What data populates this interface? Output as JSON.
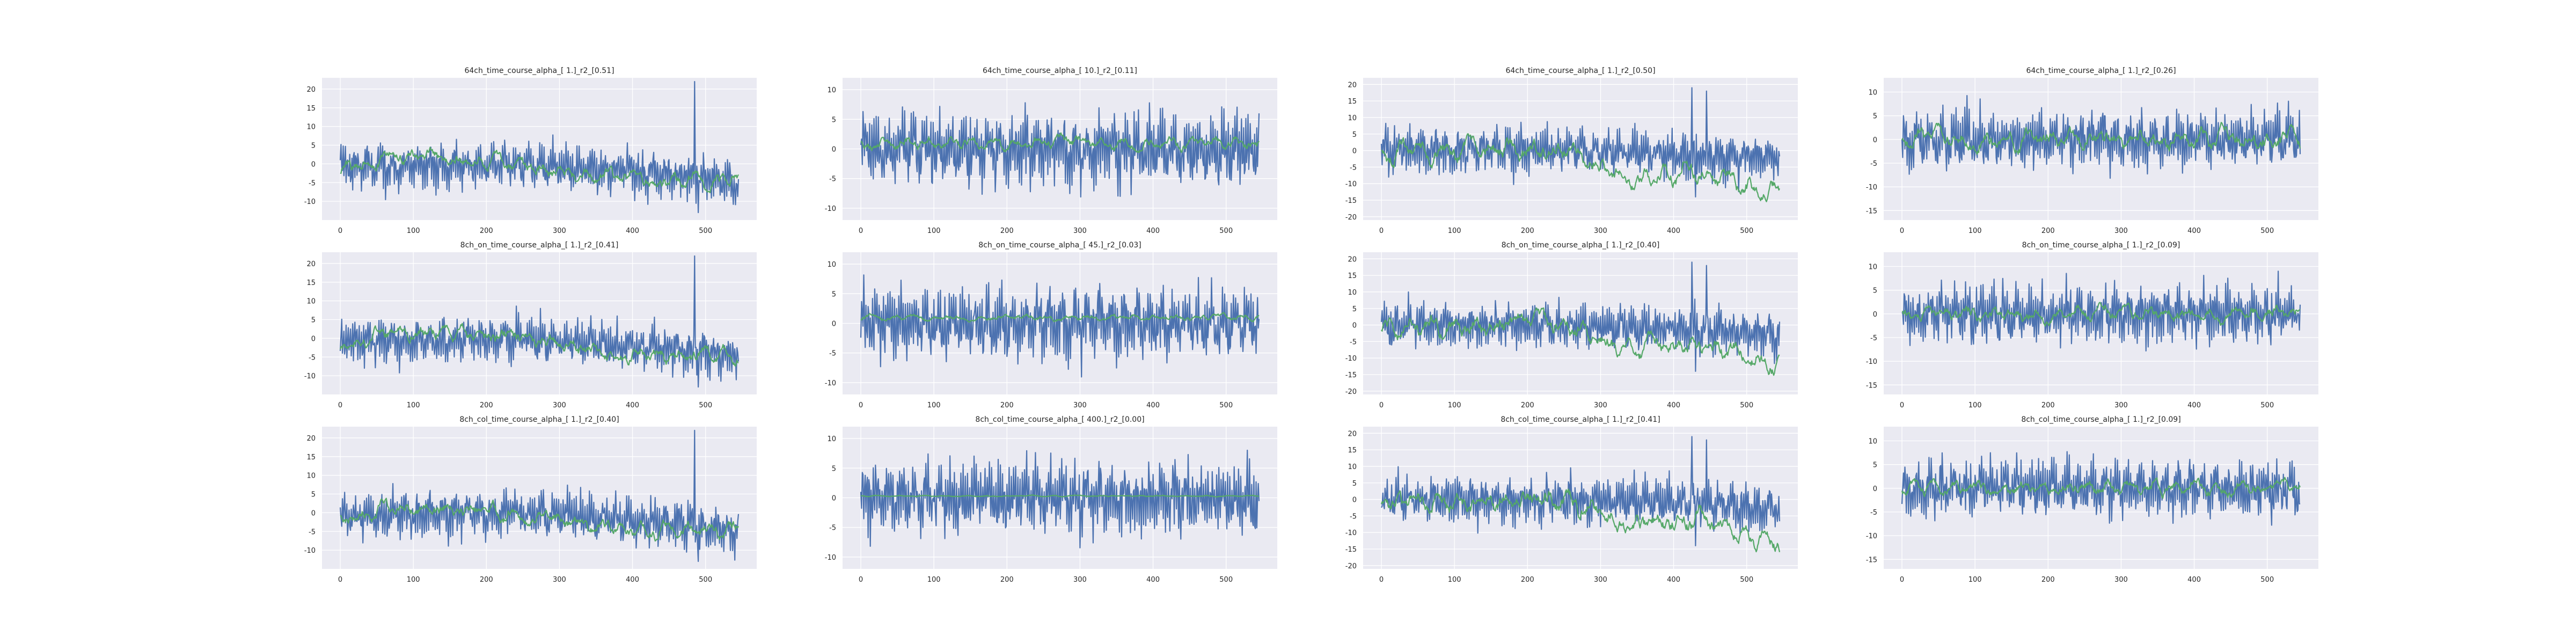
{
  "figure": {
    "background": "#ffffff",
    "plot_background": "#eaeaf2",
    "grid_color": "#ffffff",
    "colors": {
      "blue": "#4c72b0",
      "green": "#55a868"
    }
  },
  "chart_data": [
    {
      "type": "line",
      "title": "64ch_time_course_alpha_[ 1.]_r2_[0.51]",
      "x_range": [
        0,
        545
      ],
      "xlim": [
        -25,
        570
      ],
      "ylim": [
        -15,
        23
      ],
      "xticks": [
        0,
        100,
        200,
        300,
        400,
        500
      ],
      "yticks": [
        -10,
        -5,
        0,
        5,
        10,
        15,
        20
      ],
      "grid": true,
      "series": [
        {
          "color": "blue",
          "amplitude": 6,
          "style": "oscillating",
          "trend": [
            [
              0,
              -1
            ],
            [
              240,
              0
            ],
            [
              470,
              -3
            ],
            [
              545,
              -5
            ]
          ],
          "bursts": [
            [
              485,
              22
            ],
            [
              490,
              -13
            ]
          ]
        },
        {
          "color": "green",
          "amplitude": 2,
          "style": "smooth",
          "trend": [
            [
              0,
              -2
            ],
            [
              60,
              2
            ],
            [
              240,
              0
            ],
            [
              420,
              -5
            ],
            [
              545,
              -4
            ]
          ]
        }
      ]
    },
    {
      "type": "line",
      "title": "64ch_time_course_alpha_[ 10.]_r2_[0.11]",
      "x_range": [
        0,
        545
      ],
      "xlim": [
        -25,
        570
      ],
      "ylim": [
        -12,
        12
      ],
      "xticks": [
        0,
        100,
        200,
        300,
        400,
        500
      ],
      "yticks": [
        -10,
        -5,
        0,
        5,
        10
      ],
      "grid": true,
      "series": [
        {
          "color": "blue",
          "amplitude": 6,
          "style": "oscillating",
          "trend": [
            [
              0,
              0
            ],
            [
              545,
              0
            ]
          ]
        },
        {
          "color": "green",
          "amplitude": 1,
          "style": "smooth",
          "trend": [
            [
              0,
              1
            ],
            [
              545,
              1
            ]
          ]
        }
      ]
    },
    {
      "type": "line",
      "title": "64ch_time_course_alpha_[ 1.]_r2_[0.50]",
      "x_range": [
        0,
        545
      ],
      "xlim": [
        -25,
        570
      ],
      "ylim": [
        -21,
        22
      ],
      "xticks": [
        0,
        100,
        200,
        300,
        400,
        500
      ],
      "yticks": [
        -20,
        -15,
        -10,
        -5,
        0,
        5,
        10,
        15,
        20
      ],
      "grid": true,
      "series": [
        {
          "color": "blue",
          "amplitude": 7,
          "style": "oscillating",
          "trend": [
            [
              0,
              0
            ],
            [
              250,
              0
            ],
            [
              400,
              -1
            ],
            [
              545,
              -3
            ]
          ],
          "bursts": [
            [
              425,
              19
            ],
            [
              430,
              -14
            ],
            [
              445,
              18
            ]
          ]
        },
        {
          "color": "green",
          "amplitude": 3,
          "style": "smooth",
          "trend": [
            [
              0,
              -1
            ],
            [
              250,
              0
            ],
            [
              350,
              -8
            ],
            [
              440,
              -6
            ],
            [
              545,
              -14
            ]
          ]
        }
      ]
    },
    {
      "type": "line",
      "title": "64ch_time_course_alpha_[ 1.]_r2_[0.26]",
      "x_range": [
        0,
        545
      ],
      "xlim": [
        -25,
        570
      ],
      "ylim": [
        -17,
        13
      ],
      "xticks": [
        0,
        100,
        200,
        300,
        400,
        500
      ],
      "yticks": [
        -15,
        -10,
        -5,
        0,
        5,
        10
      ],
      "grid": true,
      "series": [
        {
          "color": "blue",
          "amplitude": 6,
          "style": "oscillating",
          "trend": [
            [
              0,
              0
            ],
            [
              545,
              0
            ]
          ]
        },
        {
          "color": "green",
          "amplitude": 2,
          "style": "smooth",
          "trend": [
            [
              0,
              0
            ],
            [
              545,
              0
            ]
          ]
        }
      ]
    },
    {
      "type": "line",
      "title": "8ch_on_time_course_alpha_[ 1.]_r2_[0.41]",
      "x_range": [
        0,
        545
      ],
      "xlim": [
        -25,
        570
      ],
      "ylim": [
        -15,
        23
      ],
      "xticks": [
        0,
        100,
        200,
        300,
        400,
        500
      ],
      "yticks": [
        -10,
        -5,
        0,
        5,
        10,
        15,
        20
      ],
      "grid": true,
      "series": [
        {
          "color": "blue",
          "amplitude": 6,
          "style": "oscillating",
          "trend": [
            [
              0,
              -1
            ],
            [
              240,
              0
            ],
            [
              470,
              -3
            ],
            [
              545,
              -5
            ]
          ],
          "bursts": [
            [
              485,
              22
            ],
            [
              490,
              -13
            ]
          ]
        },
        {
          "color": "green",
          "amplitude": 2,
          "style": "smooth",
          "trend": [
            [
              0,
              -2
            ],
            [
              60,
              2
            ],
            [
              240,
              0
            ],
            [
              420,
              -5
            ],
            [
              545,
              -4
            ]
          ]
        }
      ]
    },
    {
      "type": "line",
      "title": "8ch_on_time_course_alpha_[ 45.]_r2_[0.03]",
      "x_range": [
        0,
        545
      ],
      "xlim": [
        -25,
        570
      ],
      "ylim": [
        -12,
        12
      ],
      "xticks": [
        0,
        100,
        200,
        300,
        400,
        500
      ],
      "yticks": [
        -10,
        -5,
        0,
        5,
        10
      ],
      "grid": true,
      "series": [
        {
          "color": "blue",
          "amplitude": 6,
          "style": "oscillating",
          "trend": [
            [
              0,
              0
            ],
            [
              545,
              0
            ]
          ]
        },
        {
          "color": "green",
          "amplitude": 0.5,
          "style": "smooth",
          "trend": [
            [
              0,
              1
            ],
            [
              545,
              1
            ]
          ]
        }
      ]
    },
    {
      "type": "line",
      "title": "8ch_on_time_course_alpha_[ 1.]_r2_[0.40]",
      "x_range": [
        0,
        545
      ],
      "xlim": [
        -25,
        570
      ],
      "ylim": [
        -21,
        22
      ],
      "xticks": [
        0,
        100,
        200,
        300,
        400,
        500
      ],
      "yticks": [
        -20,
        -15,
        -10,
        -5,
        0,
        5,
        10,
        15,
        20
      ],
      "grid": true,
      "series": [
        {
          "color": "blue",
          "amplitude": 7,
          "style": "oscillating",
          "trend": [
            [
              0,
              0
            ],
            [
              250,
              0
            ],
            [
              400,
              -1
            ],
            [
              545,
              -3
            ]
          ],
          "bursts": [
            [
              425,
              19
            ],
            [
              430,
              -14
            ],
            [
              445,
              18
            ]
          ]
        },
        {
          "color": "green",
          "amplitude": 3,
          "style": "smooth",
          "trend": [
            [
              0,
              -1
            ],
            [
              250,
              0
            ],
            [
              350,
              -8
            ],
            [
              440,
              -6
            ],
            [
              545,
              -12
            ]
          ]
        }
      ]
    },
    {
      "type": "line",
      "title": "8ch_on_time_course_alpha_[ 1.]_r2_[0.09]",
      "x_range": [
        0,
        545
      ],
      "xlim": [
        -25,
        570
      ],
      "ylim": [
        -17,
        13
      ],
      "xticks": [
        0,
        100,
        200,
        300,
        400,
        500
      ],
      "yticks": [
        -15,
        -10,
        -5,
        0,
        5,
        10
      ],
      "grid": true,
      "series": [
        {
          "color": "blue",
          "amplitude": 6,
          "style": "oscillating",
          "trend": [
            [
              0,
              0
            ],
            [
              545,
              0
            ]
          ]
        },
        {
          "color": "green",
          "amplitude": 1.5,
          "style": "smooth",
          "trend": [
            [
              0,
              0
            ],
            [
              545,
              0
            ]
          ]
        }
      ]
    },
    {
      "type": "line",
      "title": "8ch_col_time_course_alpha_[ 1.]_r2_[0.40]",
      "x_range": [
        0,
        545
      ],
      "xlim": [
        -25,
        570
      ],
      "ylim": [
        -15,
        23
      ],
      "xticks": [
        0,
        100,
        200,
        300,
        400,
        500
      ],
      "yticks": [
        -10,
        -5,
        0,
        5,
        10,
        15,
        20
      ],
      "grid": true,
      "series": [
        {
          "color": "blue",
          "amplitude": 6,
          "style": "oscillating",
          "trend": [
            [
              0,
              -1
            ],
            [
              240,
              0
            ],
            [
              470,
              -3
            ],
            [
              545,
              -5
            ]
          ],
          "bursts": [
            [
              485,
              22
            ],
            [
              490,
              -13
            ]
          ]
        },
        {
          "color": "green",
          "amplitude": 2,
          "style": "smooth",
          "trend": [
            [
              0,
              -2
            ],
            [
              60,
              2
            ],
            [
              240,
              0
            ],
            [
              420,
              -5
            ],
            [
              545,
              -4
            ]
          ]
        }
      ]
    },
    {
      "type": "line",
      "title": "8ch_col_time_course_alpha_[ 400.]_r2_[0.00]",
      "x_range": [
        0,
        545
      ],
      "xlim": [
        -25,
        570
      ],
      "ylim": [
        -12,
        12
      ],
      "xticks": [
        0,
        100,
        200,
        300,
        400,
        500
      ],
      "yticks": [
        -10,
        -5,
        0,
        5,
        10
      ],
      "grid": true,
      "series": [
        {
          "color": "blue",
          "amplitude": 6,
          "style": "oscillating",
          "trend": [
            [
              0,
              0
            ],
            [
              545,
              0
            ]
          ]
        },
        {
          "color": "green",
          "amplitude": 0.1,
          "style": "smooth",
          "trend": [
            [
              0,
              0.3
            ],
            [
              545,
              0.3
            ]
          ]
        }
      ]
    },
    {
      "type": "line",
      "title": "8ch_col_time_course_alpha_[ 1.]_r2_[0.41]",
      "x_range": [
        0,
        545
      ],
      "xlim": [
        -25,
        570
      ],
      "ylim": [
        -21,
        22
      ],
      "xticks": [
        0,
        100,
        200,
        300,
        400,
        500
      ],
      "yticks": [
        -20,
        -15,
        -10,
        -5,
        0,
        5,
        10,
        15,
        20
      ],
      "grid": true,
      "series": [
        {
          "color": "blue",
          "amplitude": 7,
          "style": "oscillating",
          "trend": [
            [
              0,
              0
            ],
            [
              250,
              0
            ],
            [
              400,
              -1
            ],
            [
              545,
              -3
            ]
          ],
          "bursts": [
            [
              425,
              19
            ],
            [
              430,
              -14
            ],
            [
              445,
              18
            ]
          ]
        },
        {
          "color": "green",
          "amplitude": 3,
          "style": "smooth",
          "trend": [
            [
              0,
              -1
            ],
            [
              250,
              0
            ],
            [
              350,
              -8
            ],
            [
              440,
              -6
            ],
            [
              545,
              -13
            ]
          ]
        }
      ]
    },
    {
      "type": "line",
      "title": "8ch_col_time_course_alpha_[ 1.]_r2_[0.09]",
      "x_range": [
        0,
        545
      ],
      "xlim": [
        -25,
        570
      ],
      "ylim": [
        -17,
        13
      ],
      "xticks": [
        0,
        100,
        200,
        300,
        400,
        500
      ],
      "yticks": [
        -15,
        -10,
        -5,
        0,
        5,
        10
      ],
      "grid": true,
      "series": [
        {
          "color": "blue",
          "amplitude": 6,
          "style": "oscillating",
          "trend": [
            [
              0,
              0
            ],
            [
              545,
              0
            ]
          ]
        },
        {
          "color": "green",
          "amplitude": 1.5,
          "style": "smooth",
          "trend": [
            [
              0,
              0
            ],
            [
              545,
              0
            ]
          ]
        }
      ]
    }
  ]
}
